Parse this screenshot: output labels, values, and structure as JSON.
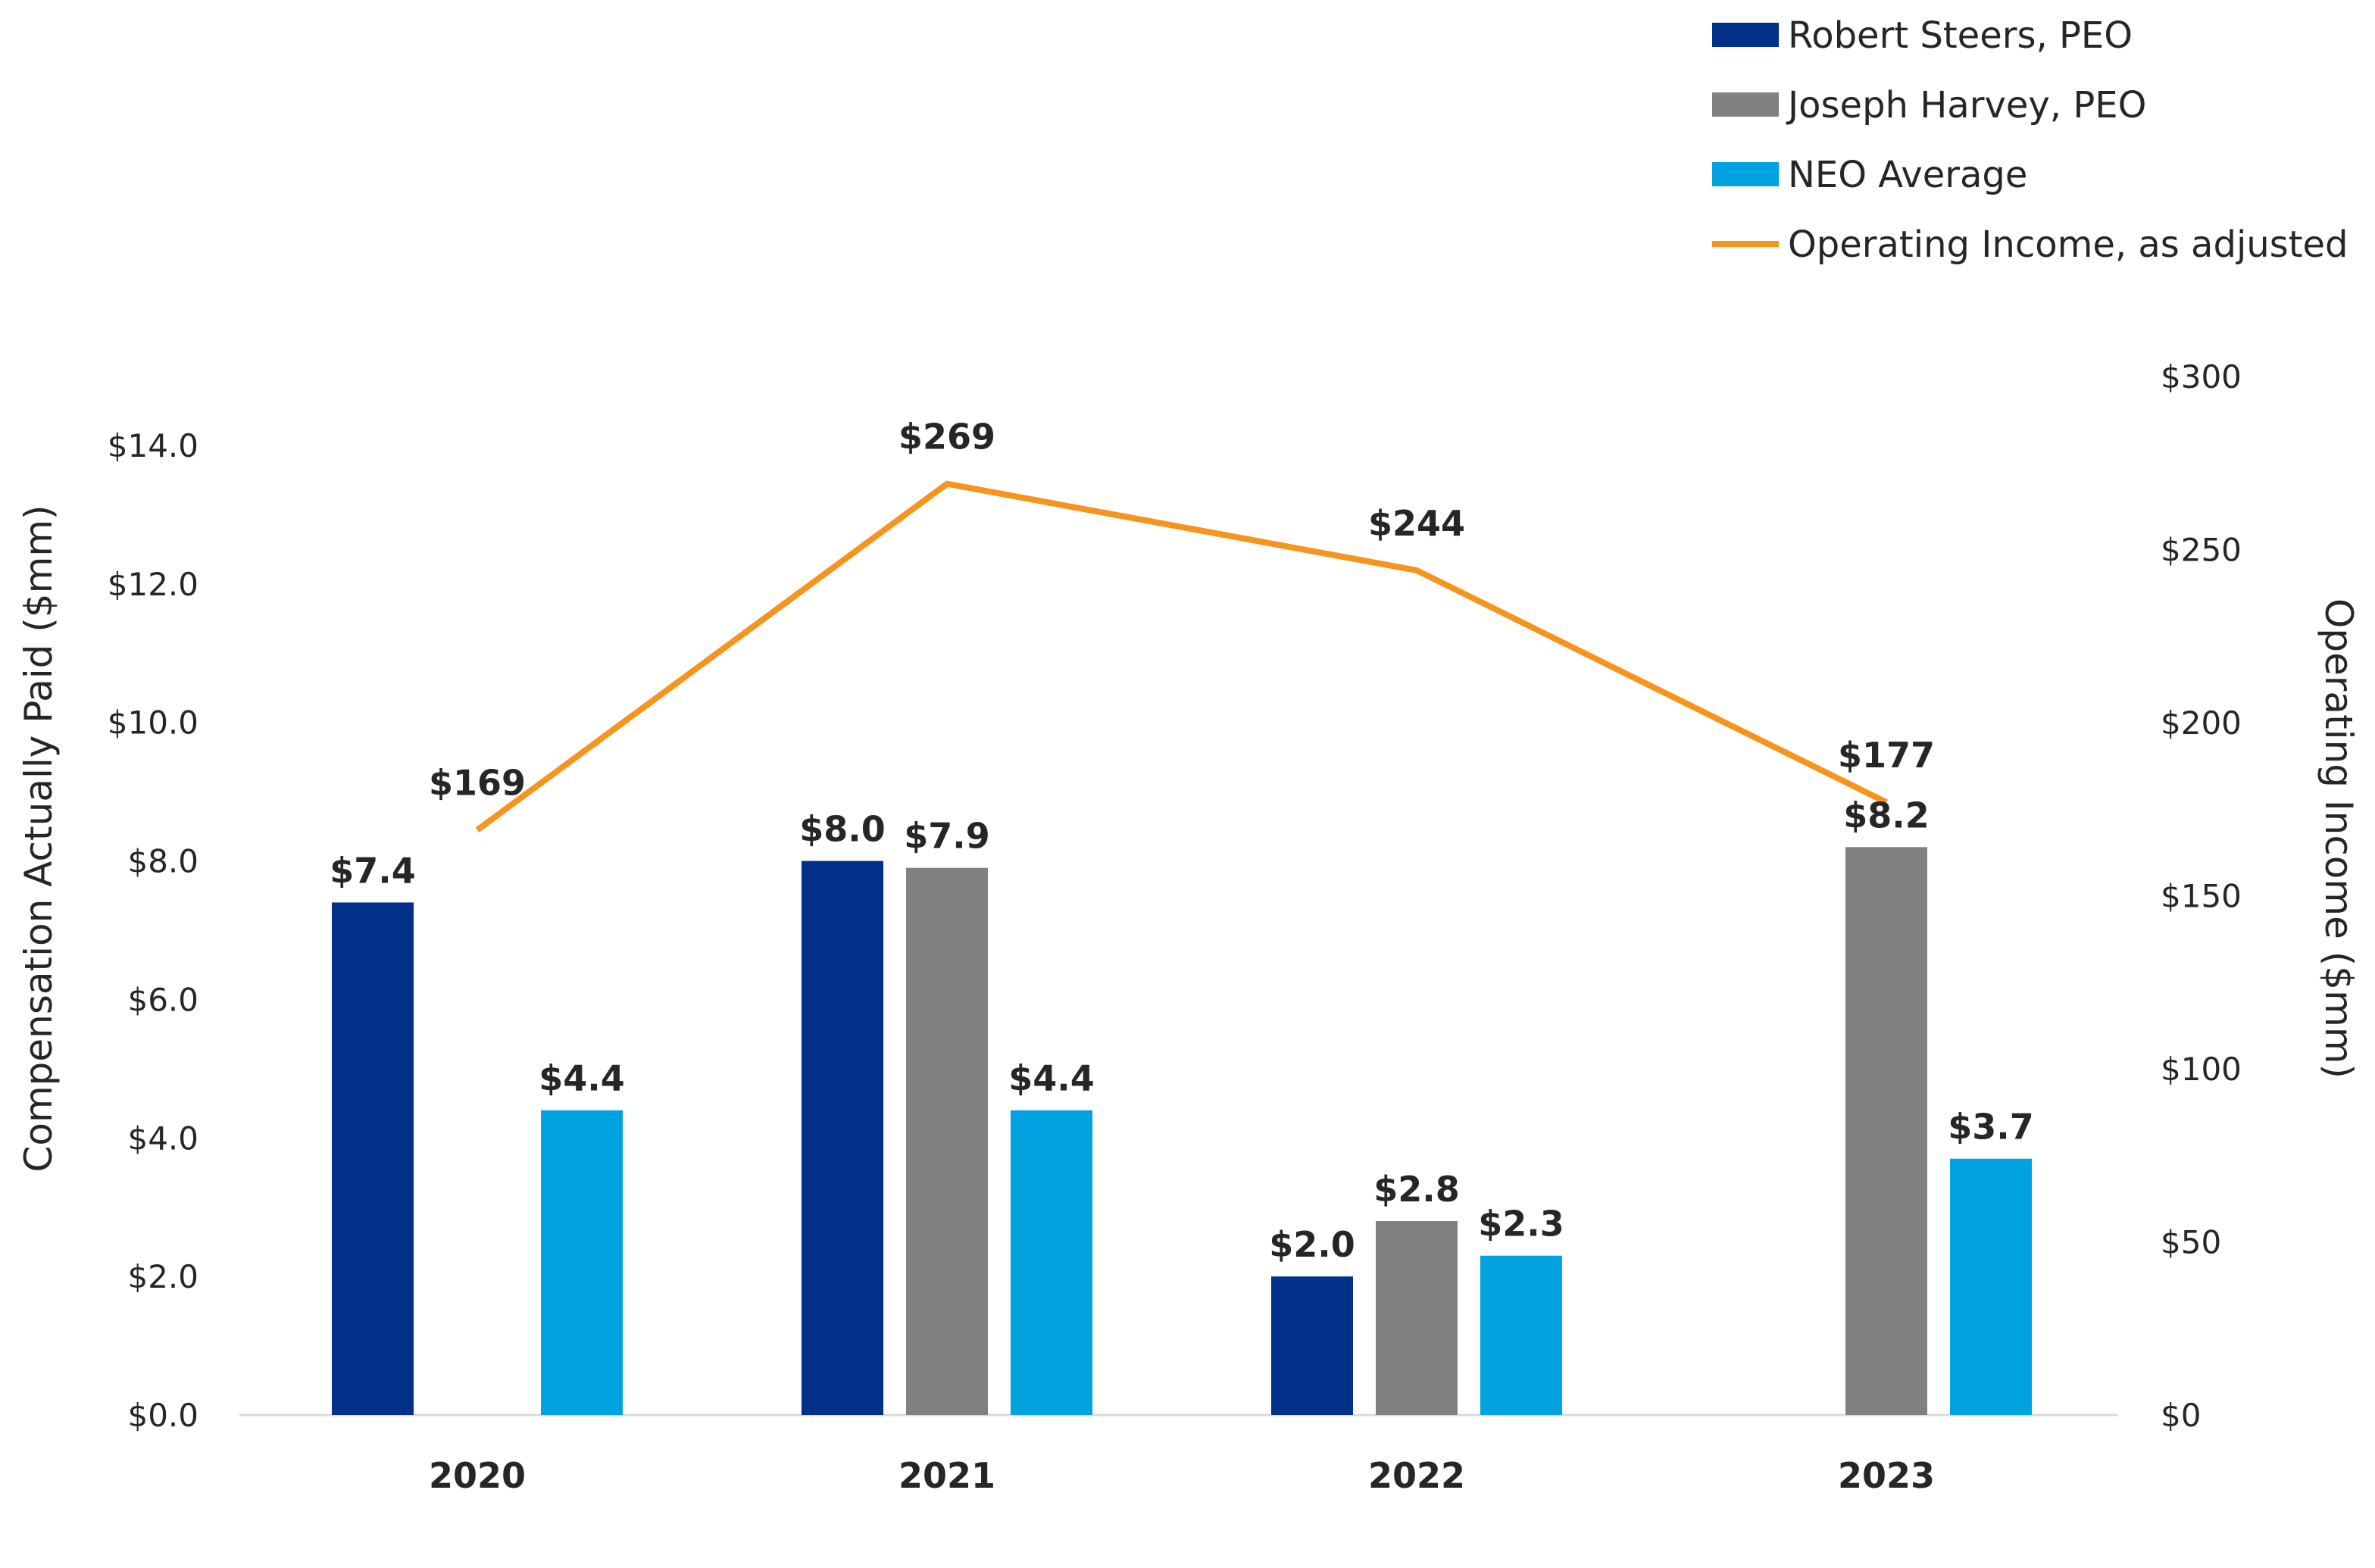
{
  "chart_data": {
    "type": "bar",
    "categories": [
      "2020",
      "2021",
      "2022",
      "2023"
    ],
    "series": [
      {
        "name": "Robert Steers, PEO",
        "kind": "bar",
        "axis": "left",
        "color": "#003087",
        "values": [
          7.4,
          8.0,
          2.0,
          null
        ],
        "labels": [
          "$7.4",
          "$8.0",
          "$2.0",
          ""
        ]
      },
      {
        "name": "Joseph Harvey, PEO",
        "kind": "bar",
        "axis": "left",
        "color": "#808080",
        "values": [
          null,
          7.9,
          2.8,
          8.2
        ],
        "labels": [
          "",
          "$7.9",
          "$2.8",
          "$8.2"
        ]
      },
      {
        "name": "NEO Average",
        "kind": "bar",
        "axis": "left",
        "color": "#00A3E0",
        "values": [
          4.4,
          4.4,
          2.3,
          3.7
        ],
        "labels": [
          "$4.4",
          "$4.4",
          "$2.3",
          "$3.7"
        ]
      },
      {
        "name": "Operating Income, as adjusted",
        "kind": "line",
        "axis": "right",
        "color": "#F7941D",
        "values": [
          169,
          269,
          244,
          177
        ],
        "labels": [
          "$169",
          "$269",
          "$244",
          "$177"
        ]
      }
    ],
    "ylabel": "Compensation Actually Paid ($mm)",
    "ylim": [
      0,
      14
    ],
    "y_ticks": [
      "$0.0",
      "$2.0",
      "$4.0",
      "$6.0",
      "$8.0",
      "$10.0",
      "$12.0",
      "$14.0"
    ],
    "y2label": "Operating Income ($mm)",
    "y2lim": [
      0,
      300
    ],
    "y2_ticks": [
      "$0",
      "$50",
      "$100",
      "$150",
      "$200",
      "$250",
      "$300"
    ],
    "grid": false,
    "legend_position": "top-right"
  }
}
